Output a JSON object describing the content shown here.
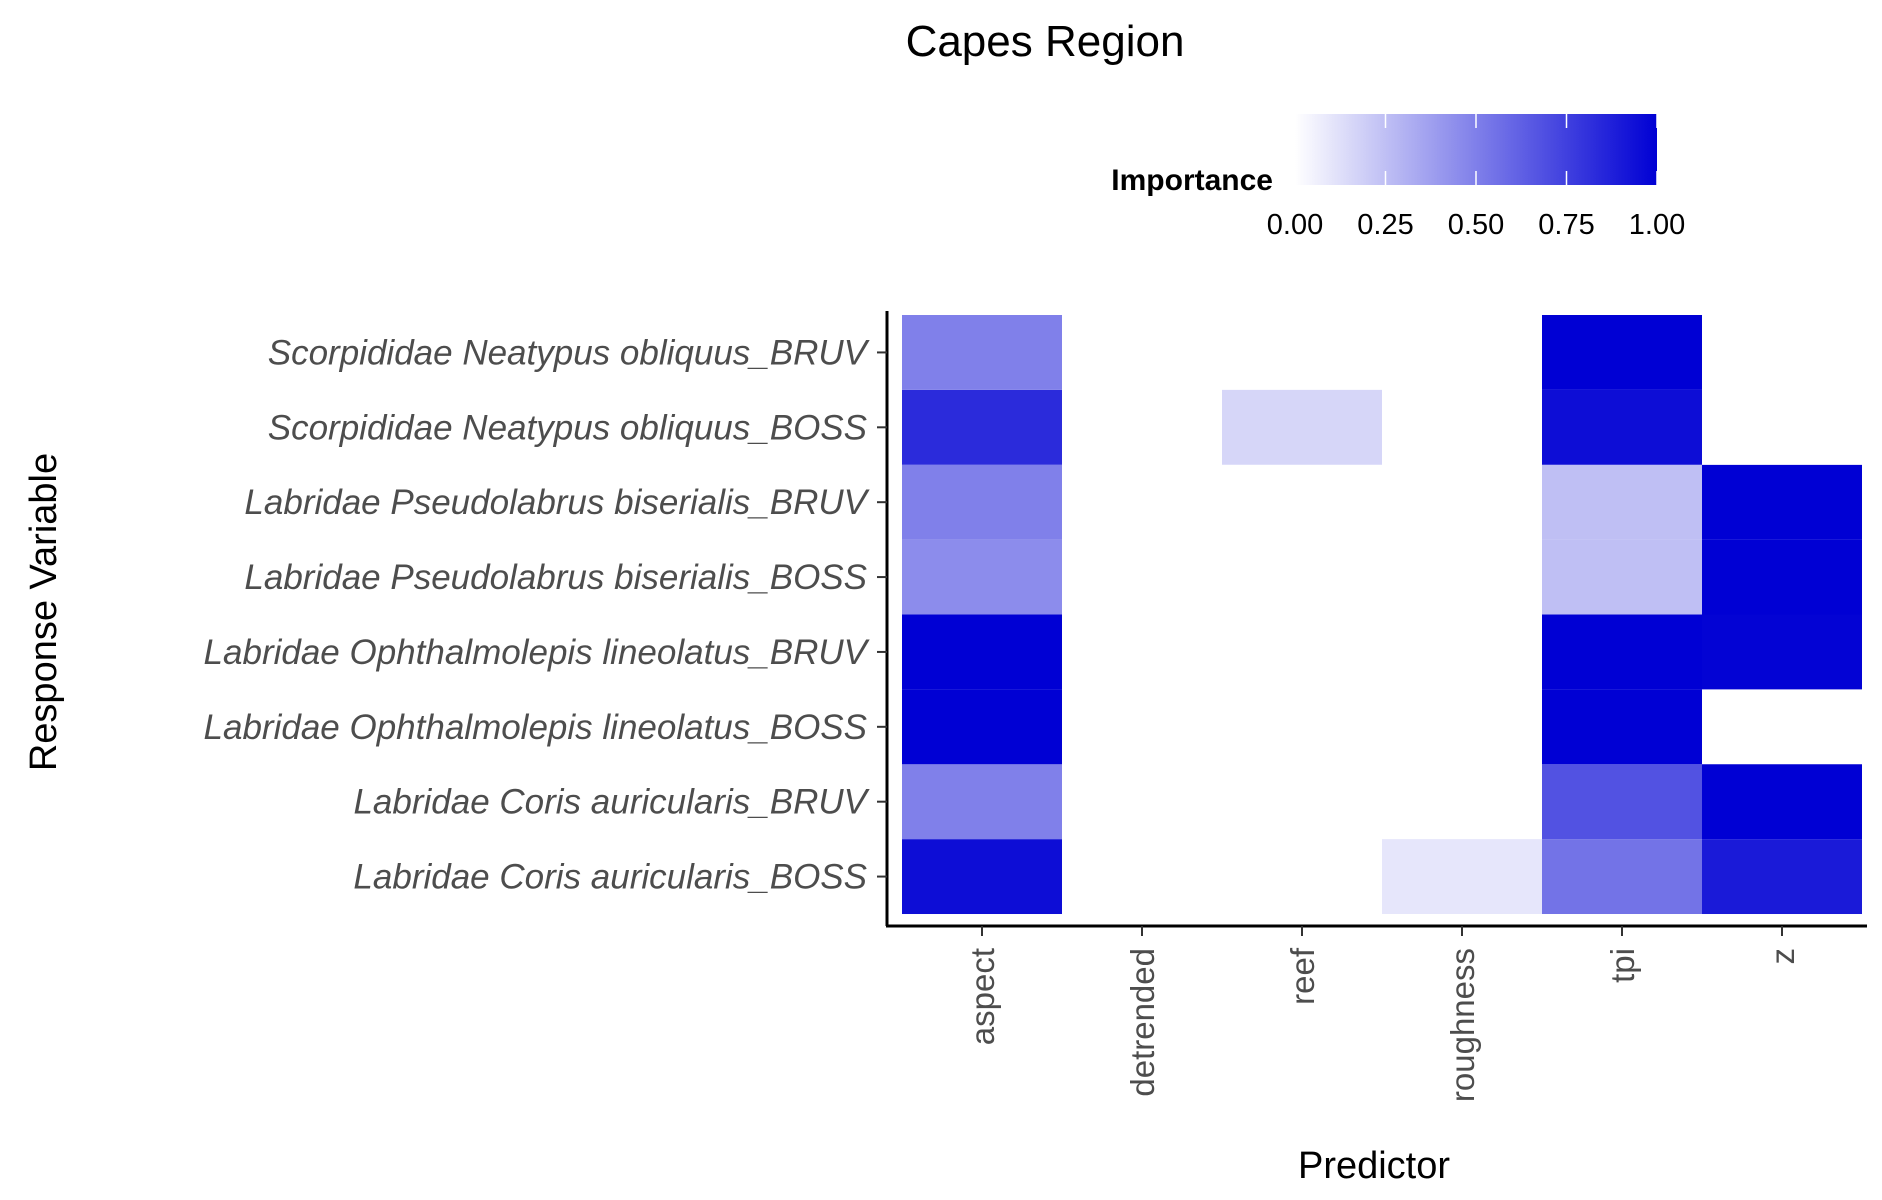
{
  "chart_data": {
    "type": "heatmap",
    "title": "Capes Region",
    "xlabel": "Predictor",
    "ylabel": "Response Variable",
    "x": [
      "aspect",
      "detrended",
      "reef",
      "roughness",
      "tpi",
      "z"
    ],
    "y": [
      "Labridae Coris auricularis_BOSS",
      "Labridae Coris auricularis_BRUV",
      "Labridae Ophthalmolepis lineolatus_BOSS",
      "Labridae Ophthalmolepis lineolatus_BRUV",
      "Labridae Pseudolabrus biserialis_BOSS",
      "Labridae Pseudolabrus biserialis_BRUV",
      "Scorpididae Neatypus obliquus_BOSS",
      "Scorpididae Neatypus obliquus_BRUV"
    ],
    "values": [
      [
        0.95,
        null,
        null,
        0.1,
        0.55,
        0.9
      ],
      [
        0.5,
        null,
        null,
        null,
        0.68,
        1.0
      ],
      [
        1.0,
        null,
        null,
        null,
        1.0,
        null
      ],
      [
        1.0,
        null,
        null,
        null,
        1.0,
        0.99
      ],
      [
        0.45,
        null,
        null,
        null,
        0.25,
        1.0
      ],
      [
        0.5,
        null,
        null,
        null,
        0.25,
        1.0
      ],
      [
        0.83,
        null,
        0.16,
        0.0,
        0.95,
        0.0
      ],
      [
        0.5,
        null,
        null,
        null,
        1.0,
        0.0
      ]
    ],
    "legend": {
      "title": "Importance",
      "position": "top",
      "ticks": [
        "0.00",
        "0.25",
        "0.50",
        "0.75",
        "1.00"
      ],
      "range": [
        0,
        1
      ],
      "low_color": "#ffffff",
      "high_color": "#0000d4"
    },
    "grid": false
  }
}
